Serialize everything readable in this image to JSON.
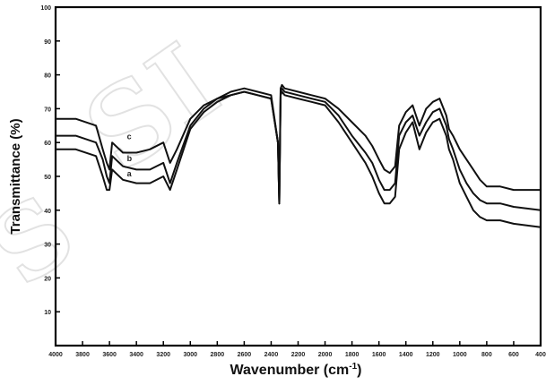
{
  "chart_data": {
    "type": "line",
    "xlabel": "Wavenumber (cm",
    "xlabel_sup": "-1",
    "xlabel_close": ")",
    "ylabel": "Transmittance (%)",
    "xlim": [
      4000,
      400
    ],
    "ylim": [
      0,
      100
    ],
    "x_ticks": [
      4000,
      3800,
      3600,
      3400,
      3200,
      3000,
      2800,
      2600,
      2400,
      2200,
      2000,
      1800,
      1600,
      1400,
      1200,
      1000,
      800,
      600,
      400
    ],
    "y_ticks": [
      10,
      20,
      30,
      40,
      50,
      60,
      70,
      80,
      90,
      100
    ],
    "series": [
      {
        "name": "a",
        "x": [
          4000,
          3850,
          3700,
          3650,
          3620,
          3600,
          3580,
          3500,
          3400,
          3300,
          3200,
          3150,
          3100,
          3000,
          2900,
          2800,
          2700,
          2600,
          2500,
          2400,
          2350,
          2340,
          2330,
          2320,
          2300,
          2200,
          2100,
          2000,
          1900,
          1800,
          1700,
          1650,
          1600,
          1560,
          1520,
          1480,
          1450,
          1400,
          1350,
          1300,
          1250,
          1200,
          1150,
          1100,
          1080,
          1050,
          1000,
          950,
          900,
          850,
          800,
          700,
          600,
          400
        ],
        "y": [
          58,
          58,
          56,
          50,
          46,
          46,
          52,
          49,
          48,
          48,
          50,
          46,
          52,
          64,
          69,
          72,
          74,
          75,
          74,
          73,
          60,
          42,
          74,
          75,
          74,
          73,
          72,
          71,
          66,
          60,
          54,
          50,
          45,
          42,
          42,
          44,
          58,
          63,
          66,
          58,
          63,
          66,
          67,
          62,
          58,
          55,
          48,
          44,
          40,
          38,
          37,
          37,
          36,
          35
        ]
      },
      {
        "name": "b",
        "x": [
          4000,
          3850,
          3700,
          3650,
          3620,
          3600,
          3580,
          3500,
          3400,
          3300,
          3200,
          3150,
          3100,
          3000,
          2900,
          2800,
          2700,
          2600,
          2500,
          2400,
          2350,
          2340,
          2330,
          2320,
          2300,
          2200,
          2100,
          2000,
          1900,
          1800,
          1700,
          1650,
          1600,
          1560,
          1520,
          1480,
          1450,
          1400,
          1350,
          1300,
          1250,
          1200,
          1150,
          1100,
          1080,
          1050,
          1000,
          950,
          900,
          850,
          800,
          700,
          600,
          400
        ],
        "y": [
          62,
          62,
          60,
          55,
          50,
          48,
          56,
          53,
          52,
          52,
          54,
          48,
          54,
          65,
          70,
          73,
          74,
          75,
          74,
          73,
          60,
          42,
          75,
          76,
          75,
          74,
          73,
          72,
          68,
          62,
          57,
          54,
          49,
          46,
          46,
          48,
          62,
          66,
          68,
          62,
          66,
          69,
          70,
          65,
          61,
          58,
          52,
          48,
          45,
          43,
          42,
          42,
          41,
          40
        ]
      },
      {
        "name": "c",
        "x": [
          4000,
          3850,
          3700,
          3650,
          3620,
          3600,
          3580,
          3500,
          3400,
          3300,
          3200,
          3150,
          3100,
          3000,
          2900,
          2800,
          2700,
          2600,
          2500,
          2400,
          2350,
          2340,
          2330,
          2320,
          2300,
          2200,
          2100,
          2000,
          1900,
          1800,
          1700,
          1650,
          1600,
          1560,
          1520,
          1480,
          1450,
          1400,
          1350,
          1300,
          1250,
          1200,
          1150,
          1100,
          1080,
          1050,
          1000,
          950,
          900,
          850,
          800,
          700,
          600,
          400
        ],
        "y": [
          67,
          67,
          65,
          58,
          54,
          52,
          60,
          57,
          57,
          58,
          60,
          54,
          58,
          67,
          71,
          73,
          75,
          76,
          75,
          74,
          60,
          42,
          76,
          77,
          76,
          75,
          74,
          73,
          70,
          66,
          62,
          59,
          55,
          52,
          51,
          53,
          65,
          69,
          71,
          65,
          70,
          72,
          73,
          68,
          64,
          62,
          58,
          55,
          52,
          49,
          47,
          47,
          46,
          46
        ]
      }
    ],
    "curve_labels": [
      {
        "text": "a",
        "x": 3470,
        "y": 50
      },
      {
        "text": "b",
        "x": 3470,
        "y": 54.5
      },
      {
        "text": "c",
        "x": 3470,
        "y": 61
      }
    ],
    "grid": false,
    "legend": "none"
  }
}
